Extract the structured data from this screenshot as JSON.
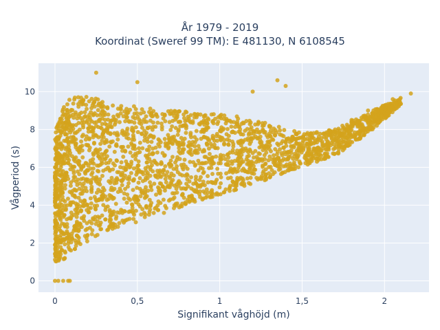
{
  "chart_data": {
    "type": "scatter",
    "title_line1": "År 1979 - 2019",
    "title_line2": "Koordinat (Sweref 99 TM): E 481130, N 6108545",
    "xlabel": "Signifikant våghöjd (m)",
    "ylabel": "Vågperiod (s)",
    "xlim": [
      -0.1,
      2.27
    ],
    "ylim": [
      -0.6,
      11.5
    ],
    "x_ticks": [
      0,
      0.5,
      1,
      1.5,
      2
    ],
    "x_tick_labels": [
      "0",
      "0,5",
      "1",
      "1,5",
      "2"
    ],
    "y_ticks": [
      0,
      2,
      4,
      6,
      8,
      10
    ],
    "y_tick_labels": [
      "0",
      "2",
      "4",
      "6",
      "8",
      "10"
    ],
    "grid": true,
    "background_color": "#e5ecf6",
    "marker_color": "#d4a31c",
    "cloud": {
      "description_points": [
        [
          0.0,
          0.0
        ],
        [
          0.02,
          0.0
        ],
        [
          0.05,
          0.0
        ],
        [
          0.08,
          0.0
        ],
        [
          0.09,
          0.0
        ],
        [
          0.25,
          11.0
        ],
        [
          0.5,
          10.5
        ],
        [
          1.35,
          10.6
        ],
        [
          1.4,
          10.3
        ],
        [
          1.2,
          10.0
        ],
        [
          2.16,
          9.9
        ],
        [
          2.05,
          9.6
        ],
        [
          1.9,
          9.0
        ],
        [
          1.8,
          8.5
        ],
        [
          1.7,
          8.0
        ]
      ],
      "upper_envelope": [
        [
          0.0,
          7.8
        ],
        [
          0.05,
          9.3
        ],
        [
          0.1,
          9.7
        ],
        [
          0.2,
          9.8
        ],
        [
          0.3,
          9.5
        ],
        [
          0.5,
          9.2
        ],
        [
          0.7,
          9.0
        ],
        [
          0.9,
          8.9
        ],
        [
          1.1,
          8.7
        ],
        [
          1.3,
          8.3
        ],
        [
          1.5,
          7.8
        ],
        [
          1.7,
          8.0
        ],
        [
          1.9,
          8.9
        ],
        [
          2.1,
          9.7
        ]
      ],
      "lower_envelope": [
        [
          0.0,
          1.0
        ],
        [
          0.05,
          1.1
        ],
        [
          0.1,
          1.5
        ],
        [
          0.2,
          2.1
        ],
        [
          0.3,
          2.6
        ],
        [
          0.5,
          3.1
        ],
        [
          0.7,
          3.7
        ],
        [
          0.9,
          4.3
        ],
        [
          1.1,
          4.8
        ],
        [
          1.3,
          5.4
        ],
        [
          1.5,
          6.0
        ],
        [
          1.7,
          6.6
        ],
        [
          1.9,
          7.8
        ],
        [
          2.1,
          9.3
        ]
      ]
    }
  }
}
